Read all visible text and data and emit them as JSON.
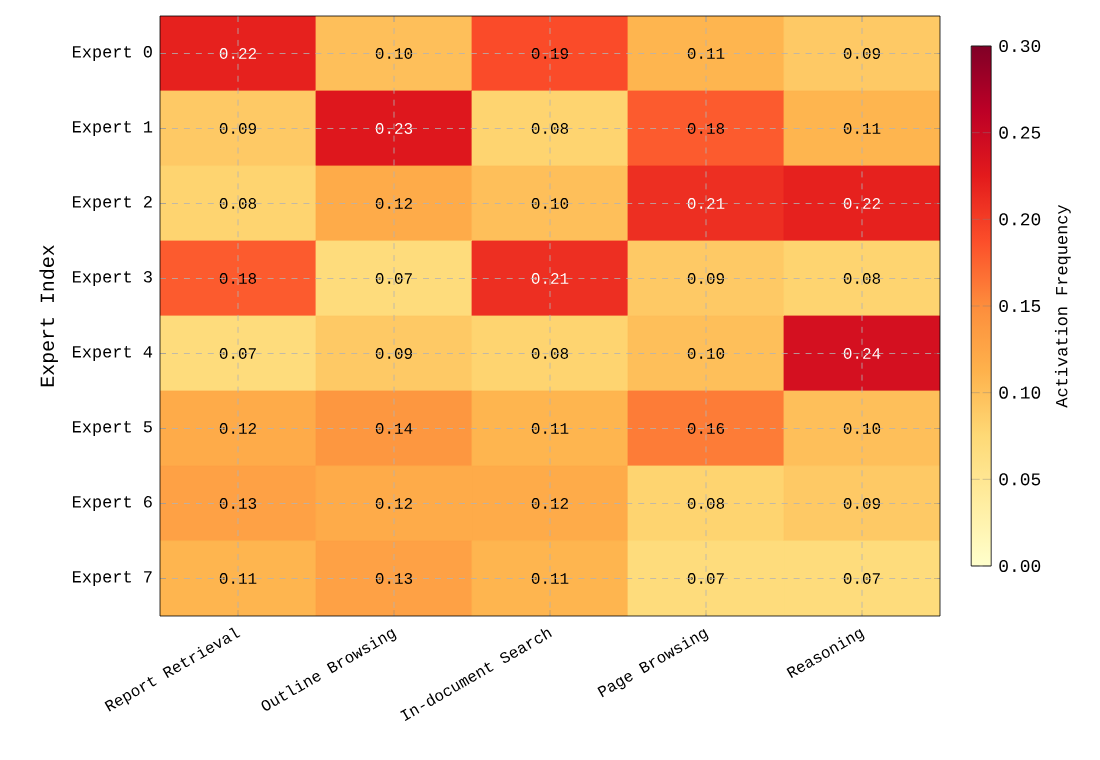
{
  "chart_data": {
    "type": "heatmap",
    "ylabel": "Expert Index",
    "clabel": "Activation Frequency",
    "categories": [
      "Report Retrieval",
      "Outline Browsing",
      "In-document Search",
      "Page Browsing",
      "Reasoning"
    ],
    "y_categories": [
      "Expert 0",
      "Expert 1",
      "Expert 2",
      "Expert 3",
      "Expert 4",
      "Expert 5",
      "Expert 6",
      "Expert 7"
    ],
    "cells": [
      [
        0.22,
        0.1,
        0.19,
        0.11,
        0.09
      ],
      [
        0.09,
        0.23,
        0.08,
        0.18,
        0.11
      ],
      [
        0.08,
        0.12,
        0.1,
        0.21,
        0.22
      ],
      [
        0.18,
        0.07,
        0.21,
        0.09,
        0.08
      ],
      [
        0.07,
        0.09,
        0.08,
        0.1,
        0.24
      ],
      [
        0.12,
        0.14,
        0.11,
        0.16,
        0.1
      ],
      [
        0.13,
        0.12,
        0.12,
        0.08,
        0.09
      ],
      [
        0.11,
        0.13,
        0.11,
        0.07,
        0.07
      ]
    ],
    "cell_labels": [
      [
        "0.22",
        "0.10",
        "0.19",
        "0.11",
        "0.09"
      ],
      [
        "0.09",
        "0.23",
        "0.08",
        "0.18",
        "0.11"
      ],
      [
        "0.08",
        "0.12",
        "0.10",
        "0.21",
        "0.22"
      ],
      [
        "0.18",
        "0.07",
        "0.21",
        "0.09",
        "0.08"
      ],
      [
        "0.07",
        "0.09",
        "0.08",
        "0.10",
        "0.24"
      ],
      [
        "0.12",
        "0.14",
        "0.11",
        "0.16",
        "0.10"
      ],
      [
        "0.13",
        "0.12",
        "0.12",
        "0.08",
        "0.09"
      ],
      [
        "0.11",
        "0.13",
        "0.11",
        "0.07",
        "0.07"
      ]
    ],
    "clim": [
      0,
      0.3
    ],
    "cticks": [
      {
        "value": 0,
        "label": "0.00"
      },
      {
        "value": 0.05,
        "label": "0.05"
      },
      {
        "value": 0.1,
        "label": "0.10"
      },
      {
        "value": 0.15,
        "label": "0.15"
      },
      {
        "value": 0.2,
        "label": "0.20"
      },
      {
        "value": 0.25,
        "label": "0.25"
      },
      {
        "value": 0.3,
        "label": "0.30"
      }
    ],
    "grid": true
  }
}
